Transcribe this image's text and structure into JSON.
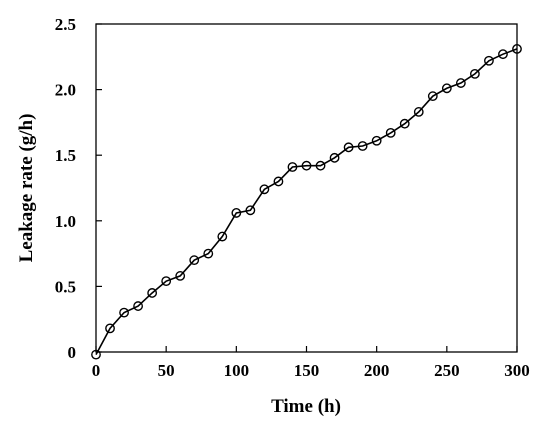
{
  "chart_data": {
    "type": "line",
    "title": "",
    "xlabel": "Time (h)",
    "ylabel": "Leakage rate (g/h)",
    "xlim": [
      0,
      300
    ],
    "ylim": [
      0,
      2.5
    ],
    "x_ticks": [
      0,
      50,
      100,
      150,
      200,
      250,
      300
    ],
    "x_tick_labels": [
      "0",
      "50",
      "100",
      "150",
      "200",
      "250",
      "300"
    ],
    "y_ticks": [
      0,
      0.5,
      1.0,
      1.5,
      2.0,
      2.5
    ],
    "y_tick_labels": [
      "0",
      "0.5",
      "1.0",
      "1.5",
      "2.0",
      "2.5"
    ],
    "grid": false,
    "marker": "open-circle",
    "series": [
      {
        "x": [
          0,
          10,
          20,
          30,
          40,
          50,
          60,
          70,
          80,
          90,
          100,
          110,
          120,
          130,
          140,
          150,
          160,
          170,
          180,
          190,
          200,
          210,
          220,
          230,
          240,
          250,
          260,
          270,
          280,
          290,
          300
        ],
        "y": [
          -0.02,
          0.18,
          0.3,
          0.35,
          0.45,
          0.54,
          0.58,
          0.7,
          0.75,
          0.88,
          1.06,
          1.08,
          1.24,
          1.3,
          1.41,
          1.42,
          1.42,
          1.48,
          1.56,
          1.57,
          1.61,
          1.67,
          1.74,
          1.83,
          1.95,
          2.01,
          2.05,
          2.12,
          2.22,
          2.27,
          2.31
        ]
      }
    ]
  }
}
